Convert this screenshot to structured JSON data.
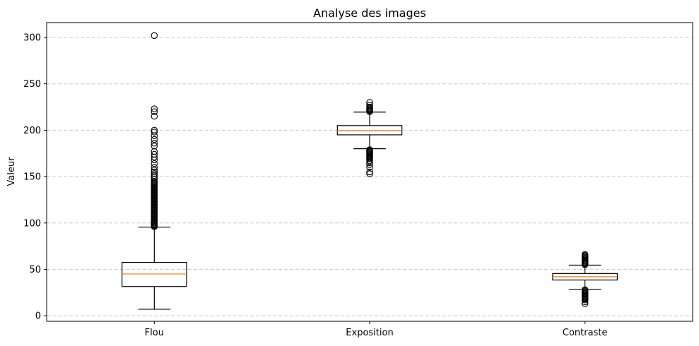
{
  "chart_data": {
    "type": "box",
    "title": "Analyse des images",
    "xlabel": "",
    "ylabel": "Valeur",
    "ylim": [
      -6,
      316
    ],
    "yticks": [
      0,
      50,
      100,
      150,
      200,
      250,
      300
    ],
    "grid": "horizontal-dashed",
    "colors": {
      "box": "#000000",
      "median": "#ff7f0e",
      "grid": "#c8c8c8"
    },
    "boxes": [
      {
        "label": "Flou",
        "whisker_low": 7,
        "q1": 31.5,
        "median": 45,
        "q3": 57.5,
        "whisker_high": 95.5,
        "outliers": [
          96,
          97,
          98,
          99,
          100,
          101,
          102,
          103,
          104,
          105,
          106,
          107,
          108,
          109,
          110,
          111,
          112,
          113,
          114,
          115,
          116,
          117,
          118,
          119,
          120,
          121,
          122,
          123,
          124,
          125,
          126,
          127,
          128,
          129,
          130,
          131,
          132,
          133,
          134,
          135,
          136,
          137,
          138,
          139,
          140,
          141,
          142,
          143,
          144,
          145,
          147,
          149,
          151,
          153,
          155,
          157,
          160,
          164,
          168,
          171,
          174,
          177,
          183,
          186,
          190,
          194,
          198,
          200,
          215,
          220,
          223,
          302
        ]
      },
      {
        "label": "Exposition",
        "whisker_low": 180,
        "q1": 195,
        "median": 199.5,
        "q3": 205,
        "whisker_high": 219.5,
        "outliers": [
          153,
          155,
          160,
          163,
          165,
          167,
          169,
          170,
          171,
          172,
          173,
          174,
          175,
          176,
          177,
          178,
          179,
          220,
          221,
          222,
          223,
          224,
          225,
          227,
          230
        ]
      },
      {
        "label": "Contraste",
        "whisker_low": 28.5,
        "q1": 38.5,
        "median": 42,
        "q3": 45.5,
        "whisker_high": 54.5,
        "outliers": [
          13,
          15,
          17,
          18,
          19,
          20,
          21,
          22,
          23,
          24,
          25,
          26,
          27,
          28,
          55,
          56,
          57,
          58,
          59,
          60,
          61,
          62,
          63,
          64,
          65,
          66
        ]
      }
    ]
  }
}
